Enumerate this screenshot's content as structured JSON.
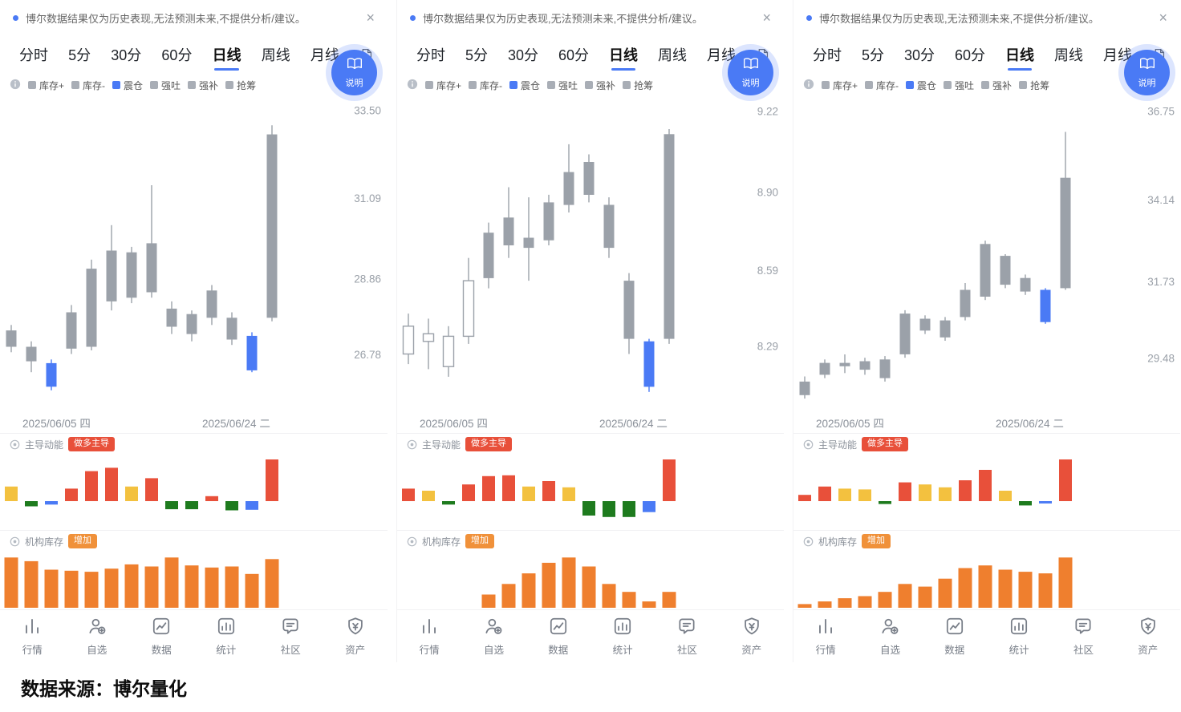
{
  "page": {
    "source_note": "数据来源：博尔量化"
  },
  "disclaimer": {
    "text": "博尔数据结果仅为历史表现,无法预测未来,不提供分析/建议。",
    "close_label": "×"
  },
  "tabs": {
    "items": [
      "分时",
      "5分",
      "30分",
      "60分",
      "日线",
      "周线",
      "月线"
    ],
    "active": "日线"
  },
  "help_fab": {
    "label": "说明"
  },
  "legend": {
    "items": [
      {
        "label": "库存+",
        "color": "#a9aeb6"
      },
      {
        "label": "库存-",
        "color": "#a9aeb6"
      },
      {
        "label": "震仓",
        "color": "#4a7af5"
      },
      {
        "label": "强吐",
        "color": "#a9aeb6"
      },
      {
        "label": "强补",
        "color": "#a9aeb6"
      },
      {
        "label": "抢筹",
        "color": "#a9aeb6"
      }
    ]
  },
  "sections": {
    "momentum": {
      "title": "主导动能",
      "badge": "做多主导"
    },
    "inventory": {
      "title": "机构库存",
      "badge": "增加"
    }
  },
  "bottom_nav": {
    "items": [
      {
        "label": "行情",
        "icon": "market-icon"
      },
      {
        "label": "自选",
        "icon": "watchlist-icon"
      },
      {
        "label": "数据",
        "icon": "data-icon"
      },
      {
        "label": "统计",
        "icon": "stats-icon"
      },
      {
        "label": "社区",
        "icon": "community-icon"
      },
      {
        "label": "资产",
        "icon": "assets-icon"
      }
    ]
  },
  "colors": {
    "accent": "#4a7af5",
    "candle_gray": "#9ba1a9",
    "candle_blue": "#4a7af5",
    "red": "#e8503a",
    "yellow": "#f3c13f",
    "green": "#1e7b1e",
    "blue": "#4a7af5",
    "inventory_orange": "#ef7f2e",
    "axis_text": "#9aa0a8",
    "badge_momentum": "#e8503a",
    "badge_inventory": "#f0913a"
  },
  "panels": [
    {
      "chart_type": "candlestick",
      "y_axis": [
        "33.50",
        "31.09",
        "28.86",
        "26.78"
      ],
      "x_axis": [
        "2025/06/05 四",
        "2025/06/24 二"
      ],
      "value_range": [
        25.2,
        33.9
      ],
      "candles": [
        {
          "wt": 27.6,
          "bt": 27.45,
          "bb": 27.0,
          "wb": 26.85,
          "t": "gray"
        },
        {
          "wt": 27.15,
          "bt": 27.0,
          "bb": 26.6,
          "wb": 26.3,
          "t": "gray"
        },
        {
          "wt": 26.65,
          "bt": 26.55,
          "bb": 25.9,
          "wb": 25.8,
          "t": "blue"
        },
        {
          "wt": 28.15,
          "bt": 27.95,
          "bb": 26.95,
          "wb": 26.8,
          "t": "gray"
        },
        {
          "wt": 29.4,
          "bt": 29.15,
          "bb": 27.0,
          "wb": 26.9,
          "t": "gray"
        },
        {
          "wt": 30.35,
          "bt": 29.65,
          "bb": 28.25,
          "wb": 28.0,
          "t": "gray"
        },
        {
          "wt": 29.75,
          "bt": 29.6,
          "bb": 28.35,
          "wb": 28.2,
          "t": "gray"
        },
        {
          "wt": 31.45,
          "bt": 29.85,
          "bb": 28.5,
          "wb": 28.35,
          "t": "gray"
        },
        {
          "wt": 28.25,
          "bt": 28.05,
          "bb": 27.55,
          "wb": 27.35,
          "t": "gray"
        },
        {
          "wt": 28.0,
          "bt": 27.9,
          "bb": 27.35,
          "wb": 27.15,
          "t": "gray"
        },
        {
          "wt": 28.7,
          "bt": 28.55,
          "bb": 27.8,
          "wb": 27.6,
          "t": "gray"
        },
        {
          "wt": 27.95,
          "bt": 27.8,
          "bb": 27.2,
          "wb": 27.05,
          "t": "gray"
        },
        {
          "wt": 27.4,
          "bt": 27.3,
          "bb": 26.35,
          "wb": 26.3,
          "t": "blue"
        },
        {
          "wt": 33.1,
          "bt": 32.85,
          "bb": 27.8,
          "wb": 27.7,
          "t": "gray"
        }
      ],
      "momentum": [
        {
          "v": 0.35,
          "c": "yellow"
        },
        {
          "v": -0.18,
          "c": "green"
        },
        {
          "v": -0.12,
          "c": "blue"
        },
        {
          "v": 0.3,
          "c": "red"
        },
        {
          "v": 0.72,
          "c": "red"
        },
        {
          "v": 0.8,
          "c": "red"
        },
        {
          "v": 0.35,
          "c": "yellow"
        },
        {
          "v": 0.55,
          "c": "red"
        },
        {
          "v": -0.28,
          "c": "green"
        },
        {
          "v": -0.28,
          "c": "green"
        },
        {
          "v": 0.12,
          "c": "red"
        },
        {
          "v": -0.32,
          "c": "green"
        },
        {
          "v": -0.3,
          "c": "blue"
        },
        {
          "v": 1.0,
          "c": "red"
        }
      ],
      "inventory": [
        0.95,
        0.88,
        0.72,
        0.7,
        0.68,
        0.74,
        0.82,
        0.78,
        0.95,
        0.8,
        0.76,
        0.78,
        0.64,
        0.92
      ]
    },
    {
      "chart_type": "candlestick",
      "y_axis": [
        "9.22",
        "8.90",
        "8.59",
        "8.29"
      ],
      "x_axis": [
        "2025/06/05 四",
        "2025/06/24 二"
      ],
      "value_range": [
        8.03,
        9.28
      ],
      "candles": [
        {
          "wt": 8.42,
          "bt": 8.37,
          "bb": 8.26,
          "wb": 8.22,
          "t": "hollow"
        },
        {
          "wt": 8.4,
          "bt": 8.34,
          "bb": 8.31,
          "wb": 8.2,
          "t": "hollow"
        },
        {
          "wt": 8.37,
          "bt": 8.33,
          "bb": 8.21,
          "wb": 8.17,
          "t": "hollow"
        },
        {
          "wt": 8.64,
          "bt": 8.55,
          "bb": 8.33,
          "wb": 8.3,
          "t": "hollow"
        },
        {
          "wt": 8.78,
          "bt": 8.74,
          "bb": 8.56,
          "wb": 8.52,
          "t": "gray"
        },
        {
          "wt": 8.92,
          "bt": 8.8,
          "bb": 8.69,
          "wb": 8.64,
          "t": "gray"
        },
        {
          "wt": 8.88,
          "bt": 8.72,
          "bb": 8.68,
          "wb": 8.55,
          "t": "gray"
        },
        {
          "wt": 8.89,
          "bt": 8.86,
          "bb": 8.71,
          "wb": 8.69,
          "t": "gray"
        },
        {
          "wt": 9.09,
          "bt": 8.98,
          "bb": 8.85,
          "wb": 8.82,
          "t": "gray"
        },
        {
          "wt": 9.05,
          "bt": 9.02,
          "bb": 8.89,
          "wb": 8.86,
          "t": "gray"
        },
        {
          "wt": 8.88,
          "bt": 8.85,
          "bb": 8.68,
          "wb": 8.64,
          "t": "gray"
        },
        {
          "wt": 8.58,
          "bt": 8.55,
          "bb": 8.32,
          "wb": 8.26,
          "t": "gray"
        },
        {
          "wt": 8.32,
          "bt": 8.31,
          "bb": 8.13,
          "wb": 8.11,
          "t": "blue"
        },
        {
          "wt": 9.15,
          "bt": 9.13,
          "bb": 8.32,
          "wb": 8.3,
          "t": "gray"
        }
      ],
      "momentum": [
        {
          "v": 0.3,
          "c": "red"
        },
        {
          "v": 0.25,
          "c": "yellow"
        },
        {
          "v": -0.12,
          "c": "green"
        },
        {
          "v": 0.4,
          "c": "red"
        },
        {
          "v": 0.6,
          "c": "red"
        },
        {
          "v": 0.62,
          "c": "red"
        },
        {
          "v": 0.35,
          "c": "yellow"
        },
        {
          "v": 0.48,
          "c": "red"
        },
        {
          "v": 0.33,
          "c": "yellow"
        },
        {
          "v": -0.5,
          "c": "green"
        },
        {
          "v": -0.55,
          "c": "green"
        },
        {
          "v": -0.55,
          "c": "green"
        },
        {
          "v": -0.38,
          "c": "blue"
        },
        {
          "v": 1.0,
          "c": "red"
        }
      ],
      "inventory": [
        0,
        0,
        0,
        0,
        0.25,
        0.45,
        0.65,
        0.85,
        0.95,
        0.78,
        0.45,
        0.3,
        0.12,
        0.3
      ]
    },
    {
      "chart_type": "candlestick",
      "y_axis": [
        "36.75",
        "34.14",
        "31.73",
        "29.48"
      ],
      "x_axis": [
        "2025/06/05 四",
        "2025/06/24 二"
      ],
      "value_range": [
        27.9,
        37.2
      ],
      "candles": [
        {
          "wt": 28.95,
          "bt": 28.8,
          "bb": 28.4,
          "wb": 28.3,
          "t": "gray"
        },
        {
          "wt": 29.45,
          "bt": 29.35,
          "bb": 29.0,
          "wb": 28.9,
          "t": "gray"
        },
        {
          "wt": 29.6,
          "bt": 29.35,
          "bb": 29.25,
          "wb": 29.05,
          "t": "gray"
        },
        {
          "wt": 29.5,
          "bt": 29.4,
          "bb": 29.15,
          "wb": 29.0,
          "t": "gray"
        },
        {
          "wt": 29.55,
          "bt": 29.45,
          "bb": 28.9,
          "wb": 28.8,
          "t": "gray"
        },
        {
          "wt": 30.9,
          "bt": 30.8,
          "bb": 29.6,
          "wb": 29.5,
          "t": "gray"
        },
        {
          "wt": 30.75,
          "bt": 30.65,
          "bb": 30.3,
          "wb": 30.2,
          "t": "gray"
        },
        {
          "wt": 30.7,
          "bt": 30.6,
          "bb": 30.1,
          "wb": 30.0,
          "t": "gray"
        },
        {
          "wt": 31.7,
          "bt": 31.5,
          "bb": 30.7,
          "wb": 30.6,
          "t": "gray"
        },
        {
          "wt": 32.95,
          "bt": 32.85,
          "bb": 31.3,
          "wb": 31.2,
          "t": "gray"
        },
        {
          "wt": 32.55,
          "bt": 32.5,
          "bb": 31.65,
          "wb": 31.55,
          "t": "gray"
        },
        {
          "wt": 31.95,
          "bt": 31.85,
          "bb": 31.45,
          "wb": 31.35,
          "t": "gray"
        },
        {
          "wt": 31.55,
          "bt": 31.5,
          "bb": 30.55,
          "wb": 30.5,
          "t": "blue"
        },
        {
          "wt": 36.15,
          "bt": 34.8,
          "bb": 31.55,
          "wb": 31.5,
          "t": "gray"
        }
      ],
      "momentum": [
        {
          "v": 0.15,
          "c": "red"
        },
        {
          "v": 0.35,
          "c": "red"
        },
        {
          "v": 0.3,
          "c": "yellow"
        },
        {
          "v": 0.28,
          "c": "yellow"
        },
        {
          "v": -0.1,
          "c": "green"
        },
        {
          "v": 0.45,
          "c": "red"
        },
        {
          "v": 0.4,
          "c": "yellow"
        },
        {
          "v": 0.33,
          "c": "yellow"
        },
        {
          "v": 0.5,
          "c": "red"
        },
        {
          "v": 0.75,
          "c": "red"
        },
        {
          "v": 0.25,
          "c": "yellow"
        },
        {
          "v": -0.15,
          "c": "green"
        },
        {
          "v": -0.08,
          "c": "blue"
        },
        {
          "v": 1.0,
          "c": "red"
        }
      ],
      "inventory": [
        0.07,
        0.12,
        0.18,
        0.22,
        0.3,
        0.45,
        0.4,
        0.55,
        0.75,
        0.8,
        0.72,
        0.68,
        0.65,
        0.95
      ]
    }
  ]
}
